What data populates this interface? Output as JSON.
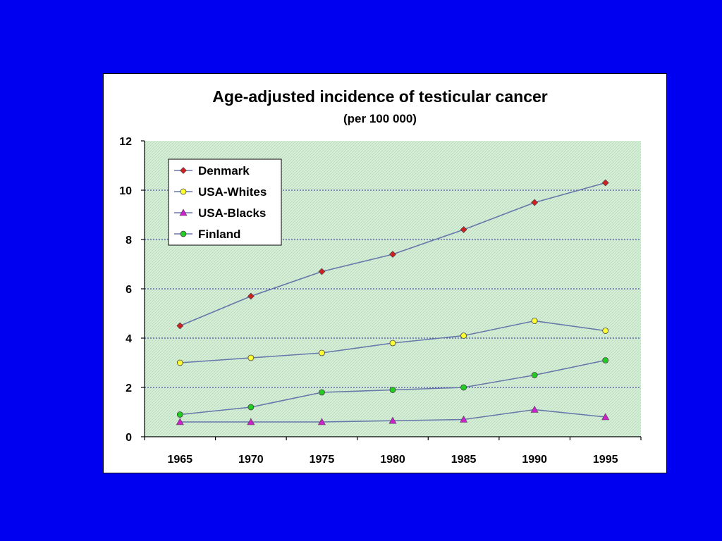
{
  "colors": {
    "background": "#0000f0",
    "panel": "#ffffff",
    "plot_area": "#d8f0d8",
    "line": "#6677aa",
    "grid": "#2a2aa0"
  },
  "chart_data": {
    "type": "line",
    "title": "Age-adjusted incidence of testicular cancer",
    "subtitle": "(per 100 000)",
    "xlabel": "",
    "ylabel": "",
    "categories": [
      "1965",
      "1970",
      "1975",
      "1980",
      "1985",
      "1990",
      "1995"
    ],
    "ylim": [
      0,
      12
    ],
    "yticks": [
      0,
      2,
      4,
      6,
      8,
      10,
      12
    ],
    "grid": "horizontal dotted",
    "legend_position": "top-left",
    "series": [
      {
        "name": "Denmark",
        "marker": "diamond",
        "color": "#cc2222",
        "values": [
          4.5,
          5.7,
          6.7,
          7.4,
          8.4,
          9.5,
          10.3
        ]
      },
      {
        "name": "USA-Whites",
        "marker": "circle",
        "color": "#ffff33",
        "values": [
          3.0,
          3.2,
          3.4,
          3.8,
          4.1,
          4.7,
          4.3
        ]
      },
      {
        "name": "USA-Blacks",
        "marker": "triangle",
        "color": "#cc22cc",
        "values": [
          0.6,
          0.6,
          0.6,
          0.65,
          0.7,
          1.1,
          0.8
        ]
      },
      {
        "name": "Finland",
        "marker": "circle",
        "color": "#22cc22",
        "values": [
          0.9,
          1.2,
          1.8,
          1.9,
          2.0,
          2.5,
          3.1
        ]
      }
    ]
  }
}
